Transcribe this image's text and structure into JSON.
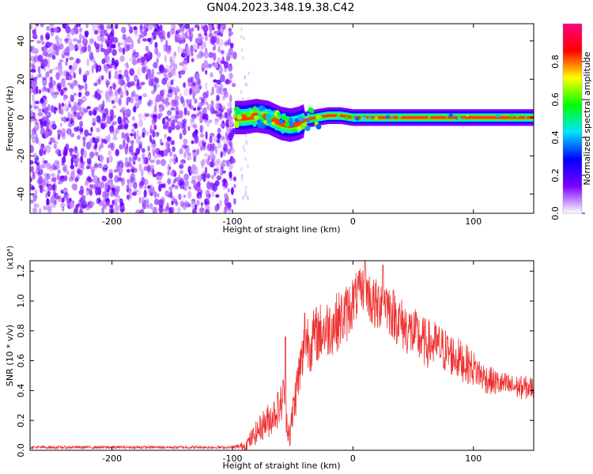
{
  "title": "GN04.2023.348.19.38.C42",
  "chart_data": [
    {
      "type": "heatmap",
      "xlabel": "Height of straight line (km)",
      "ylabel": "Frequency (Hz)",
      "xlim": [
        -268,
        150
      ],
      "ylim": [
        -50,
        49
      ],
      "x_ticks": [
        -200,
        -100,
        0,
        100
      ],
      "x_tick_labels": [
        "-200",
        "-100",
        "0",
        "100"
      ],
      "y_ticks": [
        -40,
        -20,
        0,
        20,
        40
      ],
      "y_tick_labels": [
        "-40",
        "-20",
        "0",
        "20",
        "40"
      ],
      "colorbar": {
        "label": "Normalized spectral amplitude",
        "range": [
          0,
          1
        ],
        "ticks": [
          0.0,
          0.2,
          0.4,
          0.6,
          0.8
        ],
        "tick_labels": [
          "0.0",
          "0.2",
          "0.4",
          "0.6",
          "0.8"
        ],
        "colors": [
          "#ffffff",
          "#7a00ff",
          "#0000ff",
          "#00e5ff",
          "#00ff00",
          "#ffff00",
          "#ff0000",
          "#ff0080"
        ]
      },
      "noise_region_x": [
        -268,
        -98
      ],
      "signal_track": {
        "x": [
          -98,
          -90,
          -80,
          -70,
          -60,
          -52,
          -45,
          -38,
          -30,
          -20,
          -10,
          0,
          20,
          50,
          80,
          110,
          150
        ],
        "freq": [
          0,
          0,
          1,
          0,
          -3,
          -4,
          -3,
          -1,
          0,
          1,
          1,
          0,
          0,
          0,
          0,
          0,
          0
        ]
      },
      "grid": false
    },
    {
      "type": "line",
      "xlabel": "Height of straight line (km)",
      "ylabel": "SNR (10 * v/v)",
      "y_multiplier_label": "(x10⁴)",
      "xlim": [
        -268,
        150
      ],
      "ylim": [
        0,
        1.27
      ],
      "x_ticks": [
        -200,
        -100,
        0,
        100
      ],
      "x_tick_labels": [
        "-200",
        "-100",
        "0",
        "100"
      ],
      "y_ticks": [
        0.0,
        0.2,
        0.4,
        0.6,
        0.8,
        1.0,
        1.2
      ],
      "y_tick_labels": [
        "0.0",
        "0.2",
        "0.4",
        "0.6",
        "0.8",
        "1.0",
        "1.2"
      ],
      "grid": false,
      "series": [
        {
          "color": "#ee3030",
          "x": [
            -268,
            -200,
            -150,
            -100,
            -90,
            -85,
            -80,
            -75,
            -70,
            -65,
            -60,
            -57,
            -55,
            -52,
            -50,
            -47,
            -45,
            -42,
            -40,
            -38,
            -35,
            -30,
            -25,
            -20,
            -15,
            -10,
            -5,
            0,
            5,
            10,
            15,
            20,
            25,
            30,
            40,
            50,
            60,
            70,
            80,
            90,
            100,
            110,
            120,
            130,
            140,
            150
          ],
          "values": [
            0.02,
            0.02,
            0.02,
            0.02,
            0.03,
            0.07,
            0.12,
            0.17,
            0.2,
            0.25,
            0.3,
            0.4,
            0.2,
            0.1,
            0.25,
            0.4,
            0.5,
            0.6,
            0.7,
            0.75,
            0.72,
            0.78,
            0.8,
            0.82,
            0.85,
            0.88,
            0.92,
            1.0,
            1.05,
            1.1,
            1.0,
            0.95,
            1.05,
            0.95,
            0.85,
            0.78,
            0.72,
            0.7,
            0.65,
            0.6,
            0.55,
            0.48,
            0.45,
            0.43,
            0.42,
            0.42
          ],
          "noise_amplitude": [
            0.01,
            0.01,
            0.01,
            0.01,
            0.03,
            0.06,
            0.08,
            0.1,
            0.12,
            0.12,
            0.14,
            0.15,
            0.12,
            0.1,
            0.14,
            0.16,
            0.18,
            0.2,
            0.2,
            0.2,
            0.2,
            0.2,
            0.2,
            0.2,
            0.2,
            0.2,
            0.2,
            0.18,
            0.16,
            0.15,
            0.18,
            0.2,
            0.18,
            0.18,
            0.18,
            0.18,
            0.17,
            0.16,
            0.15,
            0.14,
            0.12,
            0.1,
            0.09,
            0.08,
            0.08,
            0.08
          ],
          "spikes": [
            [
              5,
              1.2
            ],
            [
              -56,
              0.76
            ],
            [
              25,
              1.24
            ],
            [
              10,
              1.27
            ],
            [
              -40,
              0.92
            ]
          ]
        }
      ]
    }
  ]
}
